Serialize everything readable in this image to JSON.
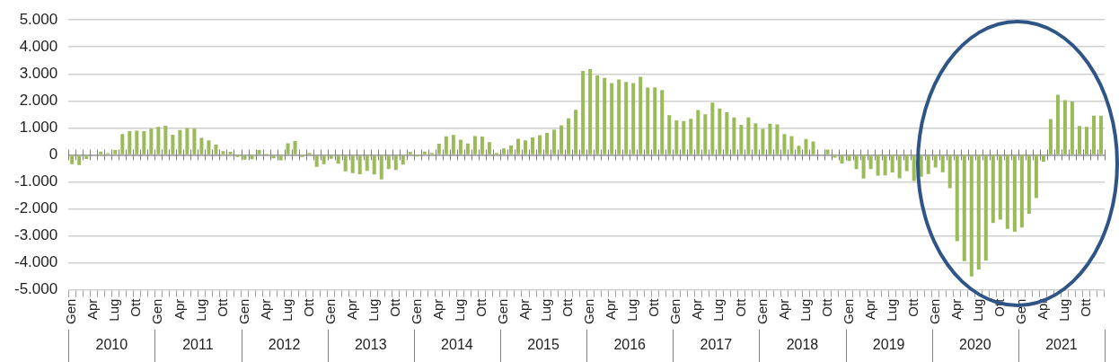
{
  "chart_data": {
    "type": "bar",
    "color": "#9bbb59",
    "grid": "y",
    "categories": [
      "Gen",
      null,
      null,
      "Apr",
      null,
      null,
      "Lug",
      null,
      null,
      "Ott",
      null,
      null,
      "Gen",
      null,
      null,
      "Apr",
      null,
      null,
      "Lug",
      null,
      null,
      "Ott",
      null,
      null,
      "Gen",
      null,
      null,
      "Apr",
      null,
      null,
      "Lug",
      null,
      null,
      "Ott",
      null,
      null,
      "Gen",
      null,
      null,
      "Apr",
      null,
      null,
      "Lug",
      null,
      null,
      "Ott",
      null,
      null,
      "Gen",
      null,
      null,
      "Apr",
      null,
      null,
      "Lug",
      null,
      null,
      "Ott",
      null,
      null,
      "Gen",
      null,
      null,
      "Apr",
      null,
      null,
      "Lug",
      null,
      null,
      "Ott",
      null,
      null,
      "Gen",
      null,
      null,
      "Apr",
      null,
      null,
      "Lug",
      null,
      null,
      "Ott",
      null,
      null,
      "Gen",
      null,
      null,
      "Apr",
      null,
      null,
      "Lug",
      null,
      null,
      "Ott",
      null,
      null,
      "Gen",
      null,
      null,
      "Apr",
      null,
      null,
      "Lug",
      null,
      null,
      "Ott",
      null,
      null,
      "Gen",
      null,
      null,
      "Apr",
      null,
      null,
      "Lug",
      null,
      null,
      "Ott",
      null,
      null,
      "Gen",
      null,
      null,
      "Apr",
      null,
      null,
      "Lug",
      null,
      null,
      "Ott",
      null,
      null,
      "Gen",
      null,
      null,
      "Apr",
      null,
      null,
      "Lug",
      null,
      null,
      "Ott",
      null,
      null
    ],
    "values": [
      -340,
      -380,
      -150,
      0,
      120,
      60,
      180,
      770,
      880,
      900,
      880,
      970,
      1040,
      1080,
      750,
      920,
      990,
      970,
      630,
      540,
      380,
      140,
      110,
      -80,
      -180,
      -160,
      180,
      40,
      -130,
      -200,
      430,
      510,
      -80,
      70,
      -440,
      -340,
      -140,
      -330,
      -610,
      -680,
      -720,
      -590,
      -730,
      -910,
      -530,
      -560,
      -360,
      110,
      -60,
      120,
      70,
      410,
      690,
      740,
      560,
      420,
      700,
      680,
      470,
      70,
      240,
      350,
      600,
      540,
      650,
      730,
      810,
      940,
      1100,
      1350,
      1670,
      3110,
      3180,
      2940,
      2850,
      2660,
      2790,
      2700,
      2660,
      2890,
      2490,
      2500,
      2400,
      1470,
      1280,
      1250,
      1340,
      1660,
      1500,
      1940,
      1720,
      1580,
      1390,
      1110,
      1390,
      1170,
      960,
      1150,
      1130,
      770,
      700,
      340,
      590,
      500,
      0,
      200,
      -100,
      -320,
      -230,
      -530,
      -880,
      -530,
      -770,
      -760,
      -650,
      -870,
      -600,
      -970,
      -810,
      -710,
      -470,
      -640,
      -1230,
      -3200,
      -3940,
      -4500,
      -4250,
      -3910,
      -2520,
      -2400,
      -2740,
      -2850,
      -2690,
      -2180,
      -1600,
      -250,
      1330,
      2230,
      2030,
      1980,
      1070,
      1040,
      1450,
      1450
    ],
    "ylim": [
      -5000,
      5000
    ],
    "yticks": [
      {
        "value": -5000,
        "label": "-5.000"
      },
      {
        "value": -4000,
        "label": "-4.000"
      },
      {
        "value": -3000,
        "label": "-3.000"
      },
      {
        "value": -2000,
        "label": "-2.000"
      },
      {
        "value": -1000,
        "label": "-1.000"
      },
      {
        "value": 0,
        "label": "0"
      },
      {
        "value": 1000,
        "label": "1.000"
      },
      {
        "value": 2000,
        "label": "2.000"
      },
      {
        "value": 3000,
        "label": "3.000"
      },
      {
        "value": 4000,
        "label": "4.000"
      },
      {
        "value": 5000,
        "label": "5.000"
      }
    ],
    "annotations": [
      "2010",
      "2011",
      "2012",
      "2013",
      "2014",
      "2015",
      "2016",
      "2017",
      "2018",
      "2019",
      "2020",
      "2021"
    ]
  }
}
